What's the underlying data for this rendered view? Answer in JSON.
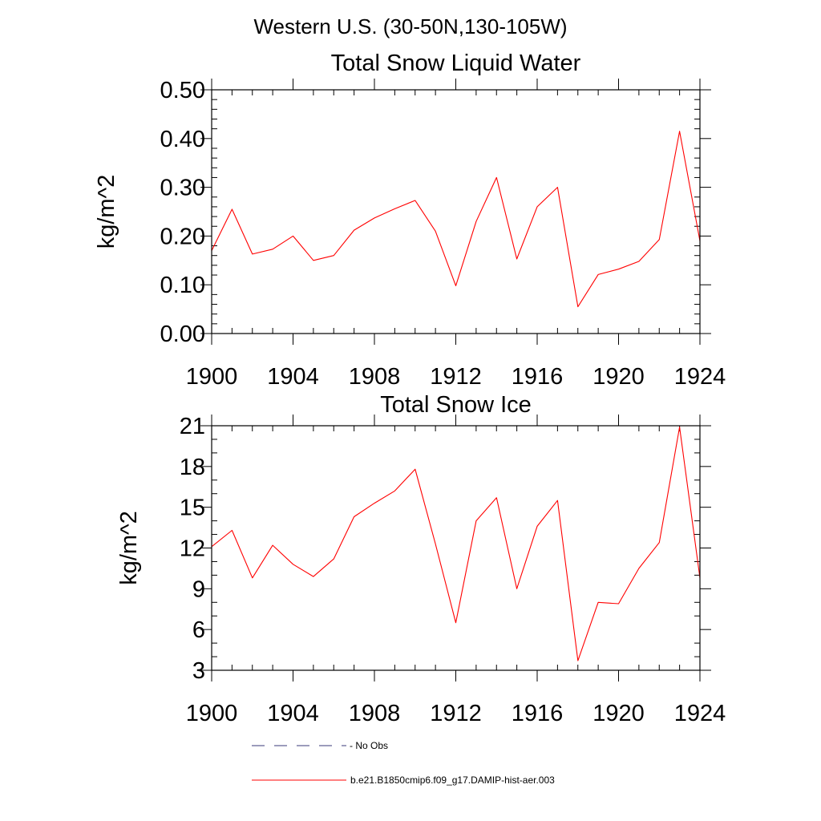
{
  "figure": {
    "title": "Western U.S. (30-50N,130-105W)"
  },
  "chart_data": [
    {
      "type": "line",
      "title": "Total Snow Liquid Water",
      "xlabel": "",
      "ylabel": "kg/m^2",
      "xlim": [
        1900,
        1924
      ],
      "ylim": [
        0.0,
        0.5
      ],
      "x_ticks": [
        1900,
        1904,
        1908,
        1912,
        1916,
        1920,
        1924
      ],
      "x_tick_labels": [
        "1900",
        "1904",
        "1908",
        "1912",
        "1916",
        "1920",
        "1924"
      ],
      "y_ticks": [
        0.0,
        0.1,
        0.2,
        0.3,
        0.4,
        0.5
      ],
      "y_tick_labels": [
        "0.00",
        "0.10",
        "0.20",
        "0.30",
        "0.40",
        "0.50"
      ],
      "x_minor_step": 1,
      "y_minor_step": 0.02,
      "grid": false,
      "series": [
        {
          "name": "b.e21.B1850cmip6.f09_g17.DAMIP-hist-aer.003",
          "color": "#ff0000",
          "x": [
            1900,
            1901,
            1902,
            1903,
            1904,
            1905,
            1906,
            1907,
            1908,
            1909,
            1910,
            1911,
            1912,
            1913,
            1914,
            1915,
            1916,
            1917,
            1918,
            1919,
            1920,
            1921,
            1922,
            1923,
            1924
          ],
          "values": [
            0.17,
            0.255,
            0.163,
            0.173,
            0.2,
            0.15,
            0.16,
            0.212,
            0.237,
            0.256,
            0.273,
            0.21,
            0.098,
            0.23,
            0.32,
            0.153,
            0.26,
            0.3,
            0.055,
            0.121,
            0.132,
            0.148,
            0.193,
            0.415,
            0.19
          ]
        }
      ]
    },
    {
      "type": "line",
      "title": "Total Snow Ice",
      "xlabel": "",
      "ylabel": "kg/m^2",
      "xlim": [
        1900,
        1924
      ],
      "ylim": [
        3,
        21
      ],
      "x_ticks": [
        1900,
        1904,
        1908,
        1912,
        1916,
        1920,
        1924
      ],
      "x_tick_labels": [
        "1900",
        "1904",
        "1908",
        "1912",
        "1916",
        "1920",
        "1924"
      ],
      "y_ticks": [
        3,
        6,
        9,
        12,
        15,
        18,
        21
      ],
      "y_tick_labels": [
        "3",
        "6",
        "9",
        "12",
        "15",
        "18",
        "21"
      ],
      "x_minor_step": 1,
      "y_minor_step": 1,
      "grid": false,
      "series": [
        {
          "name": "b.e21.B1850cmip6.f09_g17.DAMIP-hist-aer.003",
          "color": "#ff0000",
          "x": [
            1900,
            1901,
            1902,
            1903,
            1904,
            1905,
            1906,
            1907,
            1908,
            1909,
            1910,
            1911,
            1912,
            1913,
            1914,
            1915,
            1916,
            1917,
            1918,
            1919,
            1920,
            1921,
            1922,
            1923,
            1924
          ],
          "values": [
            12.1,
            13.3,
            9.8,
            12.2,
            10.8,
            9.9,
            11.2,
            14.3,
            15.3,
            16.2,
            17.8,
            12.3,
            6.5,
            14.0,
            15.7,
            9.0,
            13.6,
            15.5,
            3.7,
            8.0,
            7.9,
            10.5,
            12.4,
            20.9,
            9.8
          ]
        }
      ]
    }
  ],
  "legend": {
    "position": "bottom",
    "items": [
      {
        "label": "No Obs",
        "style": "dashed",
        "color": "#3a3a7a"
      },
      {
        "label": "b.e21.B1850cmip6.f09_g17.DAMIP-hist-aer.003",
        "style": "solid",
        "color": "#ff0000"
      }
    ]
  }
}
